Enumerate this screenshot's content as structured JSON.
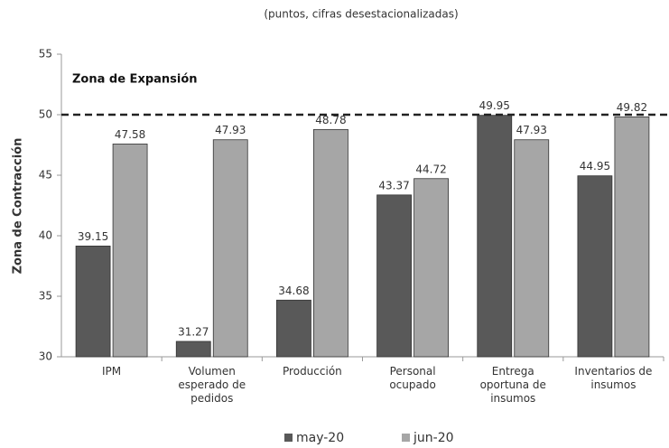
{
  "chart_data": {
    "type": "bar",
    "subtitle": "(puntos, cifras desestacionalizadas)",
    "y_label": "Zona de Contracción",
    "annotation": "Zona de Expansión",
    "threshold": 50,
    "categories": [
      "IPM",
      "Volumen esperado de pedidos",
      "Producción",
      "Personal ocupado",
      "Entrega oportuna de insumos",
      "Inventarios de insumos"
    ],
    "series": [
      {
        "name": "may-20",
        "color": "#595959",
        "values": [
          39.15,
          31.27,
          34.68,
          43.37,
          49.95,
          44.95
        ]
      },
      {
        "name": "jun-20",
        "color": "#a6a6a6",
        "values": [
          47.58,
          47.93,
          48.78,
          44.72,
          47.93,
          49.82
        ]
      }
    ],
    "ylim": [
      30,
      55
    ],
    "yticks": [
      30,
      35,
      40,
      45,
      50,
      55
    ]
  }
}
